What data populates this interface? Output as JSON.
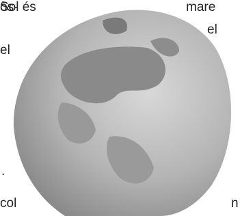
{
  "left_column": [
    "Sol és",
    "òs-",
    "el",
    ".",
    "col"
  ],
  "right_column": [
    "mare",
    "el",
    "n"
  ]
}
